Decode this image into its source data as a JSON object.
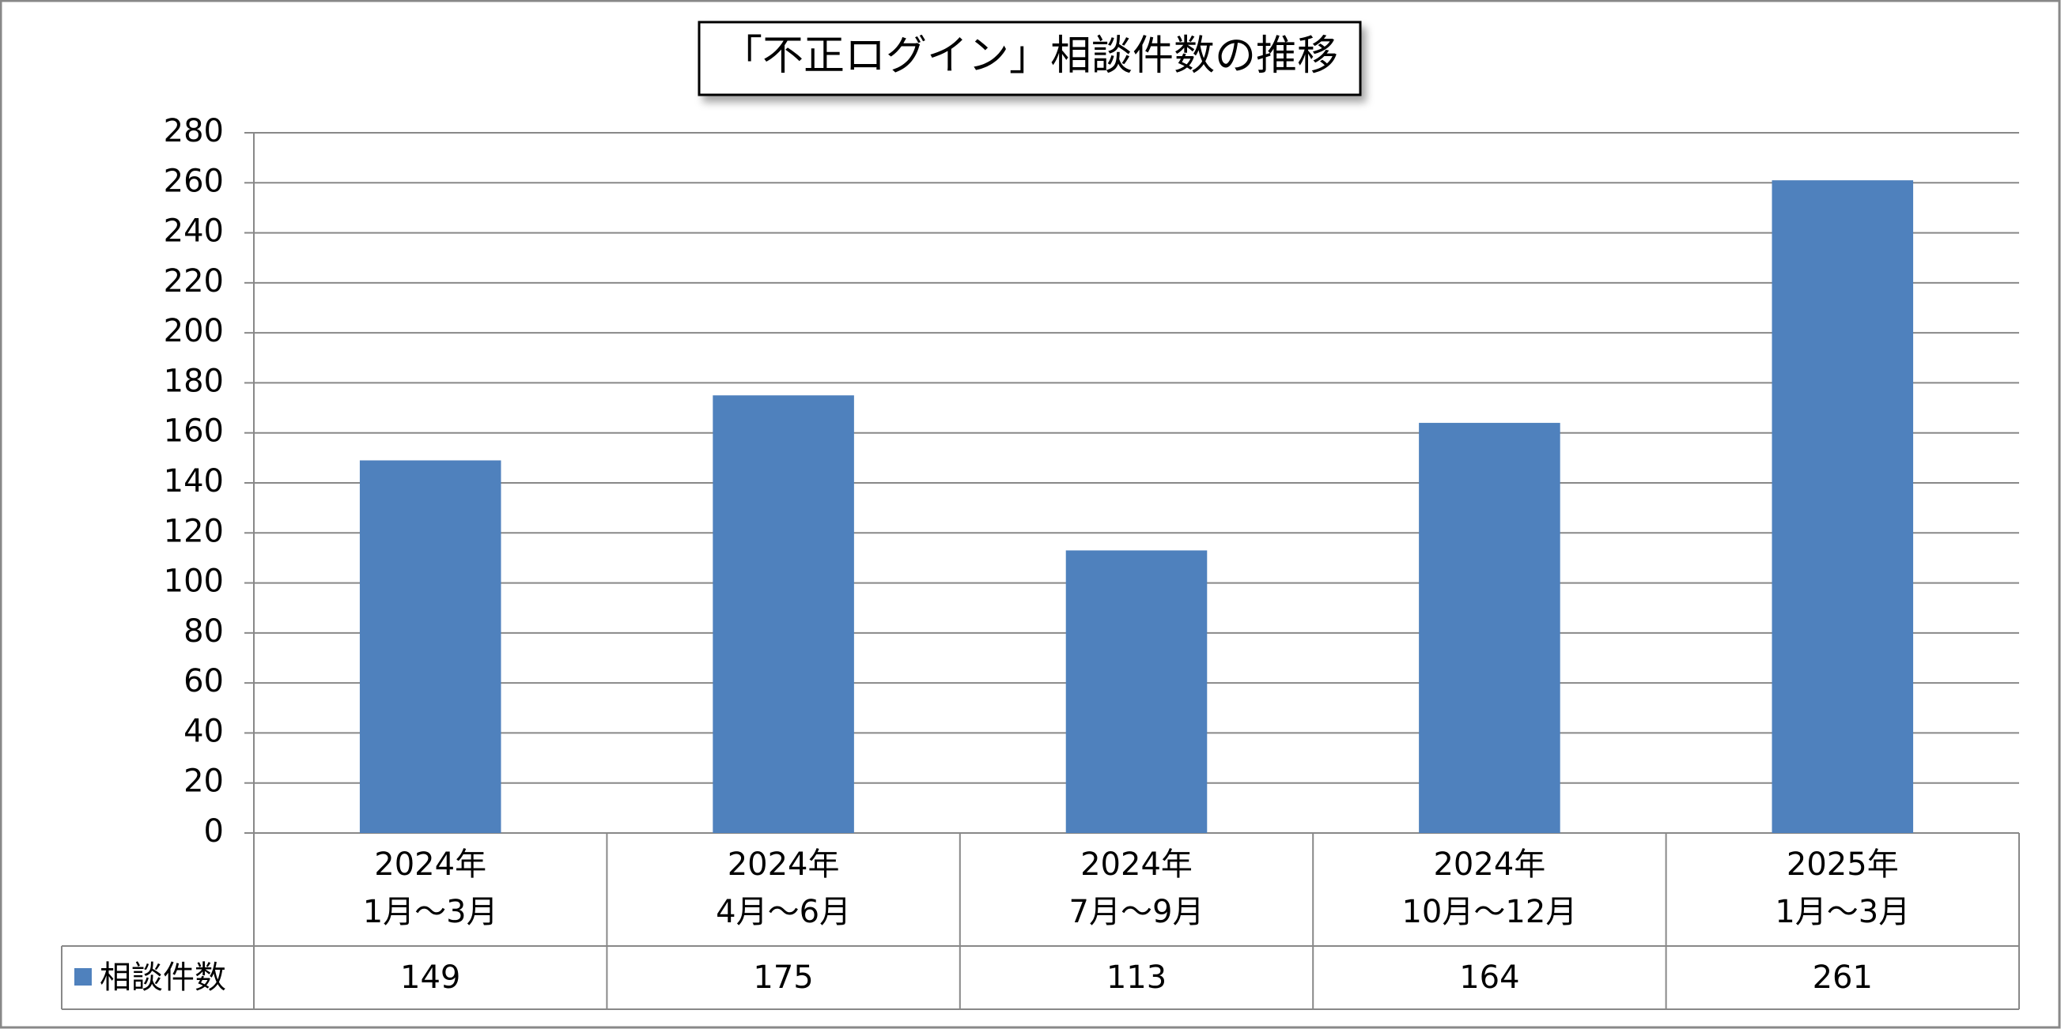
{
  "chart_data": {
    "type": "bar",
    "title": "「不正ログイン」相談件数の推移",
    "categories": [
      "2024年\n1月～3月",
      "2024年\n4月～6月",
      "2024年\n7月～9月",
      "2024年\n10月～12月",
      "2025年\n1月～3月"
    ],
    "series": [
      {
        "name": "相談件数",
        "color": "#4f81bd",
        "values": [
          149,
          175,
          113,
          164,
          261
        ]
      }
    ],
    "ylim": [
      0,
      280
    ],
    "yticks": [
      0,
      20,
      40,
      60,
      80,
      100,
      120,
      140,
      160,
      180,
      200,
      220,
      240,
      260,
      280
    ],
    "grid": true
  }
}
